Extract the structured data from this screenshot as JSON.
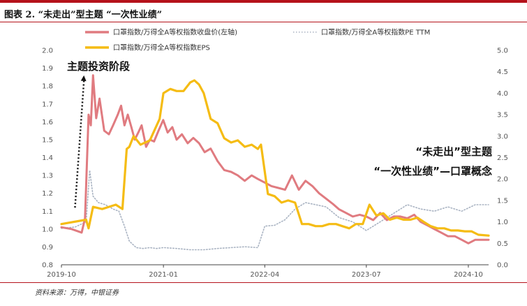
{
  "figure": {
    "title": "图表 2. “未走出”型主题 “一次性业绩”",
    "source": "资料来源：万得，中银证券"
  },
  "chart_data": {
    "type": "line",
    "title": "图表 2. “未走出”型主题 “一次性业绩”",
    "x_ticks": [
      "2019-10",
      "2021-01",
      "2022-04",
      "2023-07",
      "2024-10"
    ],
    "xlim": [
      "2019-10-01",
      "2024-12-31"
    ],
    "ylim_left": [
      0.8,
      2.0
    ],
    "ylim_right": [
      0.0,
      5.0
    ],
    "y_ticks_left": [
      "0.8",
      "0.9",
      "1.0",
      "1.1",
      "1.2",
      "1.3",
      "1.4",
      "1.5",
      "1.6",
      "1.7",
      "1.8",
      "1.9",
      "2.0"
    ],
    "y_ticks_right": [
      "0.0",
      "0.5",
      "1.0",
      "1.5",
      "2.0",
      "2.5",
      "3.0",
      "3.5",
      "4.0",
      "4.5",
      "5.0"
    ],
    "grid": false,
    "legend_position": "top",
    "series": [
      {
        "name": "口罩指数/万得全A等权指数收盘价(左轴)",
        "axis": "left",
        "color": "#e07b80",
        "style": "solid",
        "x": [
          "2019-10-01",
          "2019-11-15",
          "2019-12-31",
          "2020-01-15",
          "2020-01-31",
          "2020-02-10",
          "2020-02-20",
          "2020-03-05",
          "2020-03-20",
          "2020-04-10",
          "2020-05-01",
          "2020-05-20",
          "2020-06-10",
          "2020-06-25",
          "2020-07-10",
          "2020-07-25",
          "2020-08-10",
          "2020-08-25",
          "2020-09-10",
          "2020-09-25",
          "2020-10-15",
          "2020-11-01",
          "2020-11-20",
          "2020-12-10",
          "2020-12-31",
          "2021-01-20",
          "2021-02-10",
          "2021-03-01",
          "2021-03-25",
          "2021-04-20",
          "2021-05-15",
          "2021-06-10",
          "2021-07-05",
          "2021-08-01",
          "2021-09-01",
          "2021-10-01",
          "2021-11-01",
          "2021-12-01",
          "2022-01-01",
          "2022-02-01",
          "2022-03-01",
          "2022-04-01",
          "2022-05-01",
          "2022-06-01",
          "2022-07-01",
          "2022-08-01",
          "2022-09-01",
          "2022-10-01",
          "2022-11-01",
          "2022-12-01",
          "2023-01-01",
          "2023-02-01",
          "2023-03-01",
          "2023-04-01",
          "2023-05-01",
          "2023-06-01",
          "2023-07-01",
          "2023-08-01",
          "2023-09-01",
          "2023-10-01",
          "2023-11-01",
          "2023-12-01",
          "2024-01-01",
          "2024-02-01",
          "2024-03-01",
          "2024-04-01",
          "2024-05-01",
          "2024-06-01",
          "2024-07-01",
          "2024-08-01",
          "2024-09-01",
          "2024-10-01",
          "2024-11-01",
          "2024-12-31"
        ],
        "y": [
          1.01,
          1.0,
          0.98,
          1.06,
          1.64,
          1.58,
          1.86,
          1.62,
          1.73,
          1.55,
          1.53,
          1.58,
          1.64,
          1.69,
          1.58,
          1.64,
          1.57,
          1.5,
          1.54,
          1.58,
          1.46,
          1.5,
          1.49,
          1.55,
          1.61,
          1.54,
          1.57,
          1.5,
          1.53,
          1.48,
          1.51,
          1.48,
          1.43,
          1.45,
          1.38,
          1.33,
          1.32,
          1.3,
          1.27,
          1.3,
          1.28,
          1.26,
          1.24,
          1.23,
          1.22,
          1.3,
          1.22,
          1.27,
          1.24,
          1.2,
          1.17,
          1.14,
          1.11,
          1.09,
          1.07,
          1.08,
          1.07,
          1.05,
          1.09,
          1.05,
          1.07,
          1.07,
          1.06,
          1.08,
          1.04,
          1.02,
          1.0,
          0.98,
          0.96,
          0.96,
          0.94,
          0.92,
          0.94,
          0.94
        ]
      },
      {
        "name": "口罩指数/万得全A等权指数PE TTM",
        "axis": "right",
        "color": "#a9b3c2",
        "style": "dotted",
        "x": [
          "2019-10-01",
          "2019-12-01",
          "2020-01-20",
          "2020-02-05",
          "2020-02-20",
          "2020-03-15",
          "2020-04-15",
          "2020-05-20",
          "2020-06-15",
          "2020-07-10",
          "2020-08-01",
          "2020-09-01",
          "2020-10-01",
          "2020-11-01",
          "2020-12-01",
          "2021-01-01",
          "2021-03-01",
          "2021-05-01",
          "2021-07-01",
          "2021-09-01",
          "2021-11-01",
          "2022-01-01",
          "2022-03-01",
          "2022-04-01",
          "2022-05-15",
          "2022-07-01",
          "2022-08-15",
          "2022-10-01",
          "2022-11-15",
          "2023-01-01",
          "2023-03-01",
          "2023-05-01",
          "2023-07-01",
          "2023-09-01",
          "2023-11-01",
          "2024-01-01",
          "2024-03-01",
          "2024-05-01",
          "2024-07-01",
          "2024-09-01",
          "2024-11-01",
          "2024-12-31"
        ],
        "y": [
          0.85,
          0.88,
          1.0,
          2.2,
          1.6,
          1.45,
          1.4,
          1.3,
          1.25,
          0.9,
          0.55,
          0.4,
          0.38,
          0.4,
          0.38,
          0.4,
          0.38,
          0.35,
          0.35,
          0.38,
          0.4,
          0.42,
          0.4,
          0.9,
          0.92,
          1.05,
          1.3,
          1.45,
          1.4,
          1.35,
          1.1,
          1.0,
          0.8,
          1.0,
          1.2,
          1.4,
          1.3,
          1.25,
          1.35,
          1.25,
          1.4,
          1.4
        ]
      },
      {
        "name": "口罩指数/万得全A等权指数EPS",
        "axis": "right",
        "color": "#f5bc14",
        "style": "solid",
        "x": [
          "2019-10-01",
          "2020-01-20",
          "2020-01-31",
          "2020-02-20",
          "2020-04-01",
          "2020-05-01",
          "2020-06-01",
          "2020-07-01",
          "2020-07-20",
          "2020-08-01",
          "2020-08-20",
          "2020-09-20",
          "2020-11-01",
          "2020-12-15",
          "2021-01-01",
          "2021-02-01",
          "2021-03-01",
          "2021-04-01",
          "2021-05-01",
          "2021-05-20",
          "2021-06-10",
          "2021-07-01",
          "2021-08-01",
          "2021-09-01",
          "2021-10-01",
          "2021-11-01",
          "2021-12-01",
          "2022-01-01",
          "2022-02-01",
          "2022-03-01",
          "2022-03-15",
          "2022-04-15",
          "2022-05-15",
          "2022-06-15",
          "2022-07-15",
          "2022-08-15",
          "2022-09-15",
          "2022-10-15",
          "2022-11-15",
          "2022-12-15",
          "2023-01-15",
          "2023-02-15",
          "2023-03-15",
          "2023-04-15",
          "2023-05-15",
          "2023-06-15",
          "2023-07-15",
          "2023-08-15",
          "2023-09-15",
          "2023-10-15",
          "2023-11-15",
          "2023-12-15",
          "2024-01-15",
          "2024-02-15",
          "2024-03-15",
          "2024-04-15",
          "2024-05-15",
          "2024-06-15",
          "2024-07-15",
          "2024-08-15",
          "2024-09-15",
          "2024-10-15",
          "2024-11-15",
          "2024-12-31"
        ],
        "y": [
          0.95,
          1.05,
          0.85,
          1.35,
          1.3,
          1.35,
          1.4,
          1.3,
          2.7,
          2.75,
          3.0,
          2.8,
          2.9,
          3.4,
          4.0,
          4.1,
          4.05,
          4.05,
          4.25,
          4.3,
          4.2,
          4.0,
          3.4,
          3.3,
          2.95,
          2.85,
          2.9,
          2.75,
          2.8,
          2.7,
          2.8,
          1.65,
          1.6,
          1.45,
          1.5,
          1.45,
          0.95,
          0.95,
          0.9,
          0.9,
          0.95,
          0.95,
          0.9,
          0.85,
          0.95,
          0.95,
          1.4,
          1.15,
          1.2,
          1.05,
          1.1,
          1.05,
          1.05,
          1.1,
          1.0,
          0.9,
          0.85,
          0.85,
          0.8,
          0.8,
          0.78,
          0.78,
          0.7,
          0.68
        ]
      }
    ],
    "annotations": [
      {
        "text": "主题投资阶段",
        "at": [
          "2020-01-01",
          1.89
        ]
      },
      {
        "text": "“未走出”型主题",
        "at": [
          "2023-10-01",
          1.44
        ]
      },
      {
        "text": "“一次性业绩”—口罩概念",
        "at": [
          "2023-04-01",
          1.33
        ]
      }
    ],
    "arrow": {
      "from": [
        "2019-12-01",
        1.12
      ],
      "to": [
        "2020-01-10",
        1.86
      ]
    }
  }
}
